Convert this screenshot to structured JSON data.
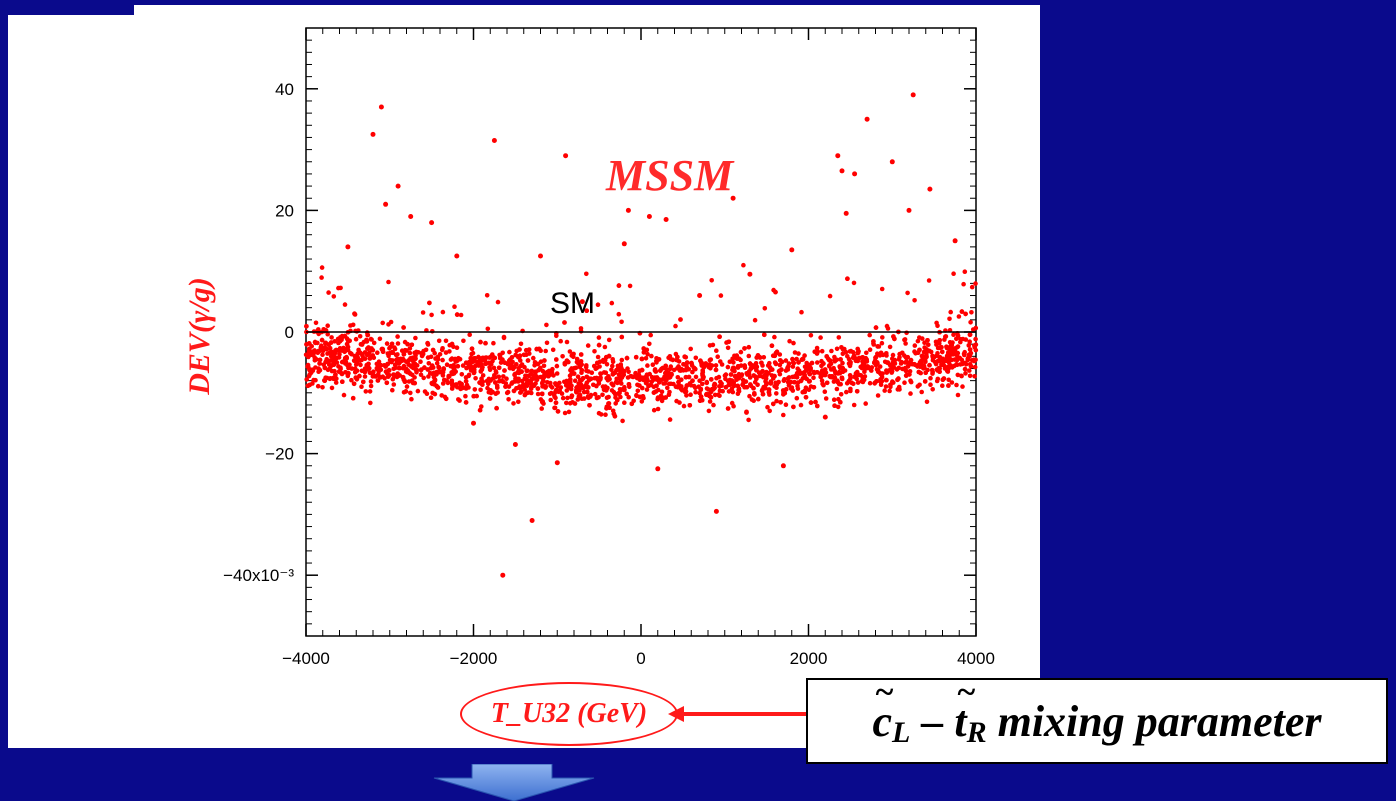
{
  "chart_data": {
    "type": "scatter",
    "xlabel": "T_U32 (GeV)",
    "ylabel": "DEV(γ/g)",
    "xlim": [
      -4000,
      4000
    ],
    "ylim": [
      -50,
      50
    ],
    "y_scale_factor_label": "x10⁻³",
    "x_ticks": [
      -4000,
      -2000,
      0,
      2000,
      4000
    ],
    "x_tick_labels": [
      "−4000",
      "−2000",
      "0",
      "2000",
      "4000"
    ],
    "y_ticks": [
      -40,
      -20,
      0,
      20,
      40
    ],
    "y_tick_labels": [
      "−40x10⁻³",
      "−20",
      "0",
      "20",
      "40"
    ],
    "reference_line": {
      "y": 0,
      "label": "SM"
    },
    "annotation": "MSSM",
    "series": [
      {
        "color": "#ff0000",
        "outliers": [
          [
            -3100,
            37
          ],
          [
            -3200,
            32.5
          ],
          [
            -3050,
            21
          ],
          [
            -2900,
            24
          ],
          [
            -2750,
            19
          ],
          [
            -2500,
            18
          ],
          [
            -1750,
            31.5
          ],
          [
            -900,
            29
          ],
          [
            -1200,
            12.5
          ],
          [
            -700,
            5
          ],
          [
            -200,
            14.5
          ],
          [
            -150,
            20
          ],
          [
            100,
            19
          ],
          [
            300,
            18.5
          ],
          [
            700,
            6
          ],
          [
            1100,
            22
          ],
          [
            1300,
            9.5
          ],
          [
            2350,
            29
          ],
          [
            2400,
            26.5
          ],
          [
            2550,
            26
          ],
          [
            2700,
            35
          ],
          [
            2450,
            19.5
          ],
          [
            3000,
            28
          ],
          [
            3200,
            20
          ],
          [
            3250,
            39
          ],
          [
            3450,
            23.5
          ],
          [
            3750,
            15
          ],
          [
            1800,
            13.5
          ],
          [
            -3500,
            14
          ],
          [
            -2200,
            12.5
          ],
          [
            -1650,
            -40
          ],
          [
            -1300,
            -31
          ],
          [
            900,
            -29.5
          ],
          [
            -1000,
            -21.5
          ],
          [
            200,
            -22.5
          ],
          [
            1700,
            -22
          ],
          [
            -1500,
            -18.5
          ],
          [
            -2000,
            -15
          ],
          [
            2200,
            -14
          ]
        ],
        "band": {
          "x_range": [
            -4000,
            4000
          ],
          "center_edge": -3.5,
          "center_mid": -8,
          "spread": 4.5,
          "point_count": 2600
        }
      }
    ]
  },
  "callout": {
    "mixing_text_c": "c",
    "mixing_sub_L": "L",
    "mixing_minus": " – ",
    "mixing_text_t": "t",
    "mixing_sub_R": "R",
    "mixing_rest": " mixing parameter"
  },
  "colors": {
    "background": "#0a0a8c",
    "points": "#ff0000",
    "label_red": "#ff1a1a"
  }
}
